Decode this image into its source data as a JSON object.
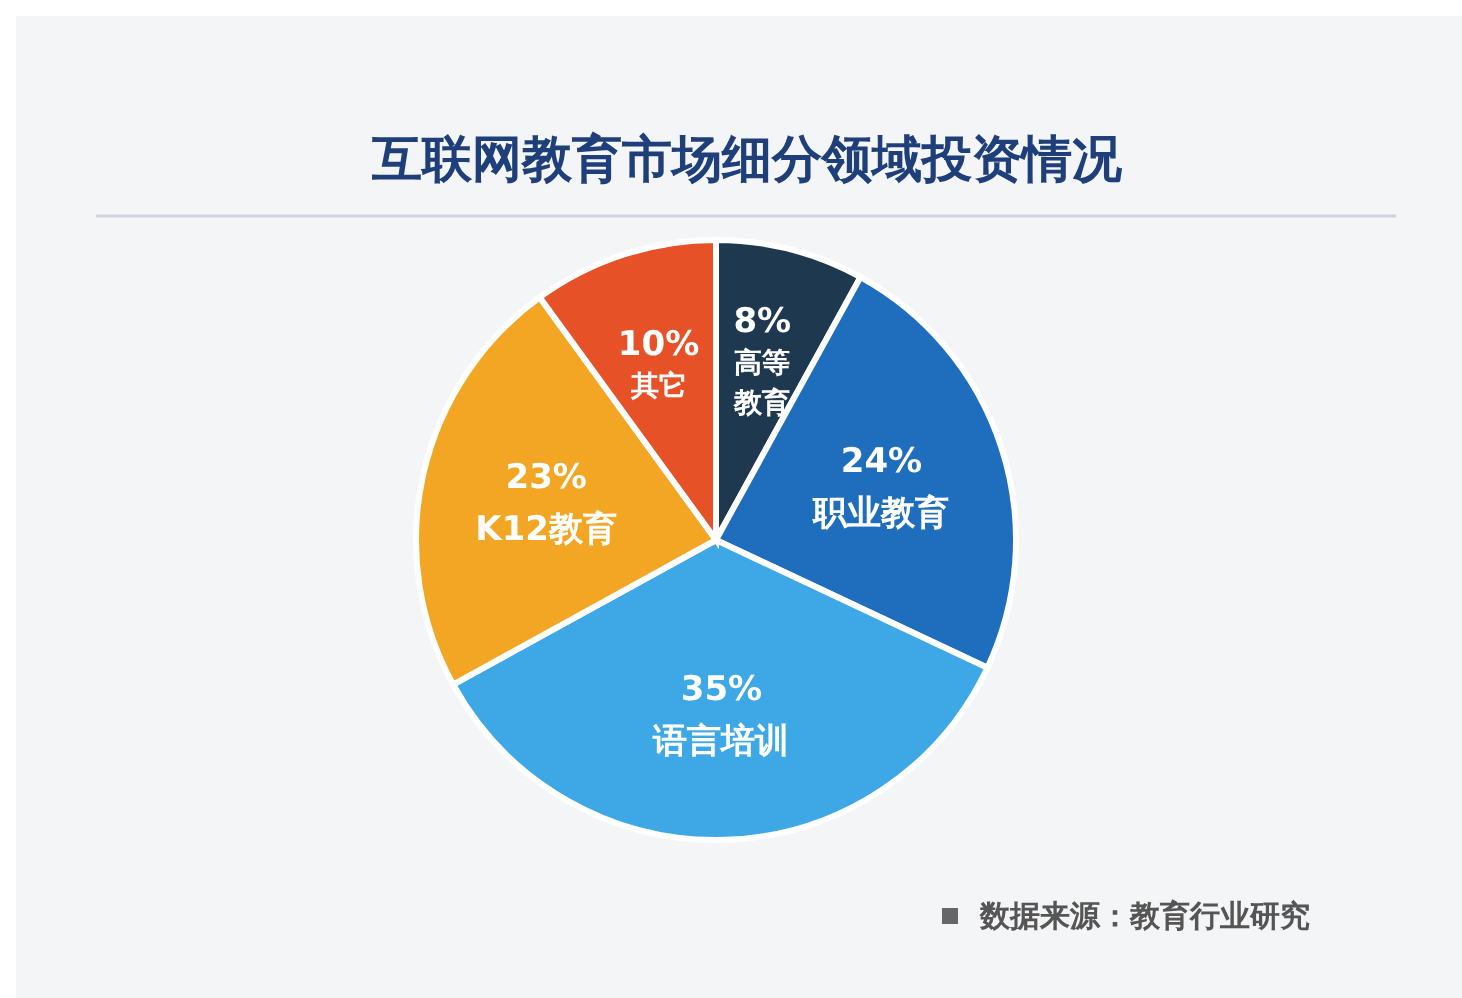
{
  "chart_data": {
    "type": "pie",
    "title": "互联网教育市场细分领域投资情况",
    "categories": [
      "高等教育",
      "职业教育",
      "语言培训",
      "K12教育",
      "其它"
    ],
    "values": [
      8,
      24,
      35,
      23,
      10
    ],
    "colors": [
      "#1e3850",
      "#1f6dbd",
      "#3ea8e6",
      "#f2a623",
      "#e65128"
    ],
    "value_labels": [
      "8%",
      "24%",
      "35%",
      "23%",
      "10%"
    ],
    "annotations": [
      "数据来源：教育行业研究"
    ]
  }
}
